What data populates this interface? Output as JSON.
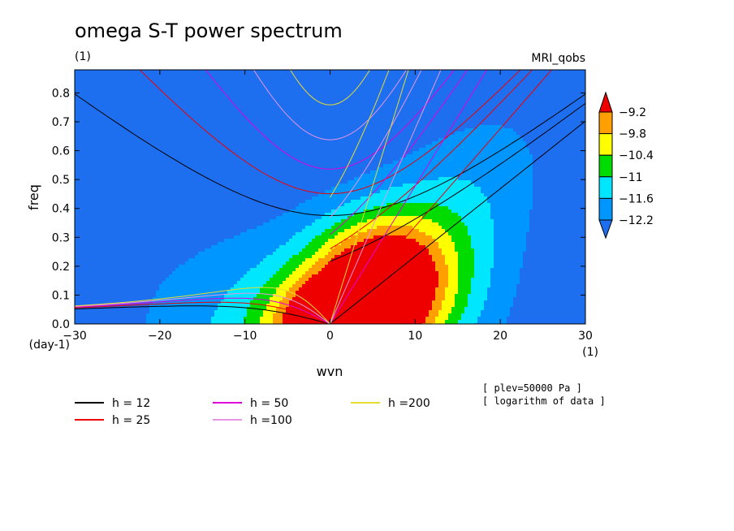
{
  "chart_data": {
    "type": "heatmap",
    "title": "omega S-T power spectrum",
    "subtitle_left": "(1)",
    "subtitle_right": "MRI_qobs",
    "xlabel": "wvn",
    "ylabel": "freq",
    "x_unit_label": "(1)",
    "y_unit_label": "(day-1)",
    "xlim": [
      -30,
      30
    ],
    "ylim": [
      0,
      0.88
    ],
    "x_ticks": [
      -30,
      -20,
      -10,
      0,
      10,
      20,
      30
    ],
    "y_ticks": [
      0.0,
      0.1,
      0.2,
      0.3,
      0.4,
      0.5,
      0.6,
      0.7,
      0.8
    ],
    "x_tick_labels": [
      "−30",
      "−20",
      "−10",
      "0",
      "10",
      "20",
      "30"
    ],
    "y_tick_labels": [
      "0.0",
      "0.1",
      "0.2",
      "0.3",
      "0.4",
      "0.5",
      "0.6",
      "0.7",
      "0.8"
    ],
    "colorbar": {
      "levels": [
        -12.2,
        -11.6,
        -11,
        -10.4,
        -9.8,
        -9.2
      ],
      "labels": [
        "−12.2",
        "−11.6",
        "−11",
        "−10.4",
        "−9.8",
        "−9.2"
      ],
      "colors": [
        "#1e6ef0",
        "#0096ff",
        "#00e6ff",
        "#00dc00",
        "#ffff00",
        "#ffa000",
        "#ee0000"
      ]
    },
    "dispersion_curves": [
      {
        "label": "h = 12",
        "h": 12,
        "color": "#000000"
      },
      {
        "label": "h = 25",
        "h": 25,
        "color": "#ee0000"
      },
      {
        "label": "h = 50",
        "h": 50,
        "color": "#dd00dd"
      },
      {
        "label": "h =100",
        "h": 100,
        "color": "#e796e7"
      },
      {
        "label": "h =200",
        "h": 200,
        "color": "#e6dc32"
      }
    ],
    "annotations": [
      "[ plev=50000 Pa ]",
      "[ logarithm of data ]"
    ]
  }
}
